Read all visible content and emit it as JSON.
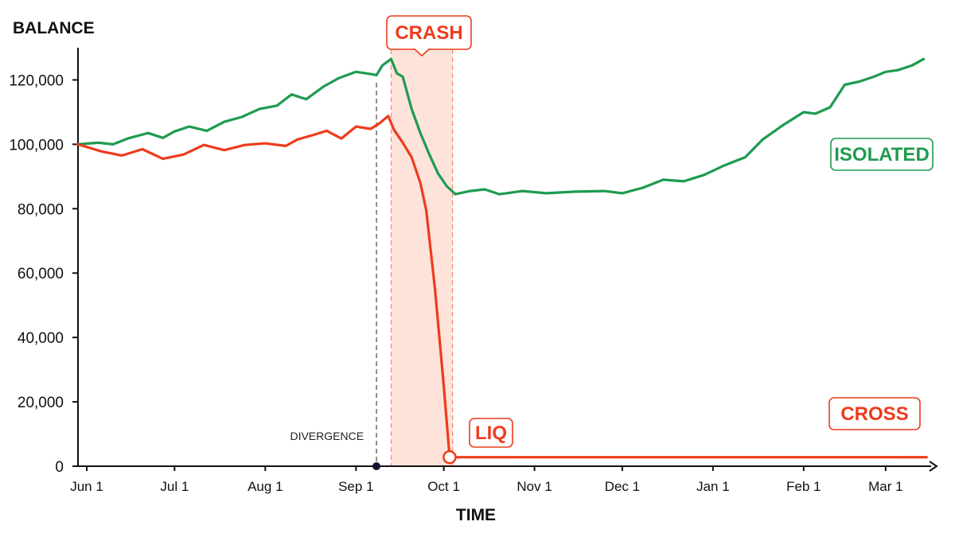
{
  "chart_data": {
    "type": "line",
    "title": "",
    "ylabel": "BALANCE",
    "xlabel": "TIME",
    "ylim": [
      0,
      130000
    ],
    "yticks": [
      0,
      20000,
      40000,
      60000,
      80000,
      100000,
      120000
    ],
    "ytick_labels": [
      "0",
      "20,000",
      "40,000",
      "60,000",
      "80,000",
      "100,000",
      "120,000"
    ],
    "xticks": [
      {
        "date": "2024-06-01",
        "label": "Jun 1"
      },
      {
        "date": "2024-07-01",
        "label": "Jul 1"
      },
      {
        "date": "2024-08-01",
        "label": "Aug 1"
      },
      {
        "date": "2024-09-01",
        "label": "Sep 1"
      },
      {
        "date": "2024-10-01",
        "label": "Oct 1"
      },
      {
        "date": "2024-11-01",
        "label": "Nov 1"
      },
      {
        "date": "2024-12-01",
        "label": "Dec 1"
      },
      {
        "date": "2025-01-01",
        "label": "Jan 1"
      },
      {
        "date": "2025-02-01",
        "label": "Feb 1"
      },
      {
        "date": "2025-03-01",
        "label": "Mar 1"
      }
    ],
    "xlim": [
      "2024-05-29",
      "2025-03-16"
    ],
    "grid": false,
    "series": [
      {
        "name": "ISOLATED",
        "color": "#1e9b4f",
        "points": [
          [
            "2024-05-29",
            100000
          ],
          [
            "2024-06-05",
            100500
          ],
          [
            "2024-06-10",
            100000
          ],
          [
            "2024-06-15",
            101800
          ],
          [
            "2024-06-22",
            103500
          ],
          [
            "2024-06-27",
            102000
          ],
          [
            "2024-07-01",
            104000
          ],
          [
            "2024-07-06",
            105500
          ],
          [
            "2024-07-12",
            104200
          ],
          [
            "2024-07-18",
            107000
          ],
          [
            "2024-07-24",
            108500
          ],
          [
            "2024-07-30",
            111000
          ],
          [
            "2024-08-05",
            112000
          ],
          [
            "2024-08-10",
            115500
          ],
          [
            "2024-08-15",
            114000
          ],
          [
            "2024-08-21",
            118000
          ],
          [
            "2024-08-26",
            120500
          ],
          [
            "2024-09-01",
            122500
          ],
          [
            "2024-09-05",
            122000
          ],
          [
            "2024-09-08",
            121500
          ],
          [
            "2024-09-10",
            124500
          ],
          [
            "2024-09-13",
            126500
          ],
          [
            "2024-09-15",
            122000
          ],
          [
            "2024-09-17",
            121000
          ],
          [
            "2024-09-20",
            111000
          ],
          [
            "2024-09-23",
            103500
          ],
          [
            "2024-09-26",
            97000
          ],
          [
            "2024-09-29",
            91000
          ],
          [
            "2024-10-02",
            87000
          ],
          [
            "2024-10-05",
            84500
          ],
          [
            "2024-10-10",
            85500
          ],
          [
            "2024-10-15",
            86000
          ],
          [
            "2024-10-20",
            84500
          ],
          [
            "2024-10-28",
            85500
          ],
          [
            "2024-11-05",
            84800
          ],
          [
            "2024-11-15",
            85300
          ],
          [
            "2024-11-25",
            85500
          ],
          [
            "2024-12-01",
            84800
          ],
          [
            "2024-12-08",
            86500
          ],
          [
            "2024-12-15",
            89000
          ],
          [
            "2024-12-22",
            88500
          ],
          [
            "2024-12-29",
            90500
          ],
          [
            "2025-01-05",
            93500
          ],
          [
            "2025-01-12",
            96000
          ],
          [
            "2025-01-18",
            101500
          ],
          [
            "2025-01-25",
            106000
          ],
          [
            "2025-02-01",
            110000
          ],
          [
            "2025-02-05",
            109500
          ],
          [
            "2025-02-10",
            111500
          ],
          [
            "2025-02-15",
            118500
          ],
          [
            "2025-02-20",
            119500
          ],
          [
            "2025-02-25",
            121000
          ],
          [
            "2025-03-01",
            122500
          ],
          [
            "2025-03-05",
            123000
          ],
          [
            "2025-03-10",
            124500
          ],
          [
            "2025-03-14",
            126500
          ]
        ]
      },
      {
        "name": "CROSS",
        "color": "#ee3b1c",
        "points": [
          [
            "2024-05-29",
            100000
          ],
          [
            "2024-06-06",
            97800
          ],
          [
            "2024-06-13",
            96500
          ],
          [
            "2024-06-20",
            98500
          ],
          [
            "2024-06-27",
            95500
          ],
          [
            "2024-07-04",
            96800
          ],
          [
            "2024-07-11",
            99800
          ],
          [
            "2024-07-18",
            98200
          ],
          [
            "2024-07-25",
            99800
          ],
          [
            "2024-08-01",
            100300
          ],
          [
            "2024-08-08",
            99500
          ],
          [
            "2024-08-12",
            101500
          ],
          [
            "2024-08-17",
            102800
          ],
          [
            "2024-08-22",
            104200
          ],
          [
            "2024-08-27",
            101800
          ],
          [
            "2024-09-01",
            105500
          ],
          [
            "2024-09-06",
            104800
          ],
          [
            "2024-09-09",
            106500
          ],
          [
            "2024-09-12",
            108800
          ],
          [
            "2024-09-14",
            104500
          ],
          [
            "2024-09-17",
            100500
          ],
          [
            "2024-09-20",
            96000
          ],
          [
            "2024-09-23",
            88000
          ],
          [
            "2024-09-25",
            79500
          ],
          [
            "2024-09-28",
            55000
          ],
          [
            "2024-10-01",
            25000
          ],
          [
            "2024-10-03",
            2800
          ]
        ]
      },
      {
        "name": "CROSS-flat",
        "color": "#ee3b1c",
        "points": [
          [
            "2024-10-03",
            2800
          ],
          [
            "2025-03-15",
            2800
          ]
        ]
      }
    ],
    "annotations": {
      "crash": {
        "label": "CRASH",
        "start": "2024-09-13",
        "end": "2024-10-04"
      },
      "divergence": {
        "label": "DIVERGENCE",
        "date": "2024-09-08"
      },
      "liq": {
        "label": "LIQ",
        "date": "2024-10-03",
        "value": 2800
      },
      "isolated_label": "ISOLATED",
      "cross_label": "CROSS"
    },
    "colors": {
      "isolated": "#1e9b4f",
      "cross": "#ee3b1c",
      "crash_band": "#fde3da",
      "axis": "#111111"
    }
  }
}
